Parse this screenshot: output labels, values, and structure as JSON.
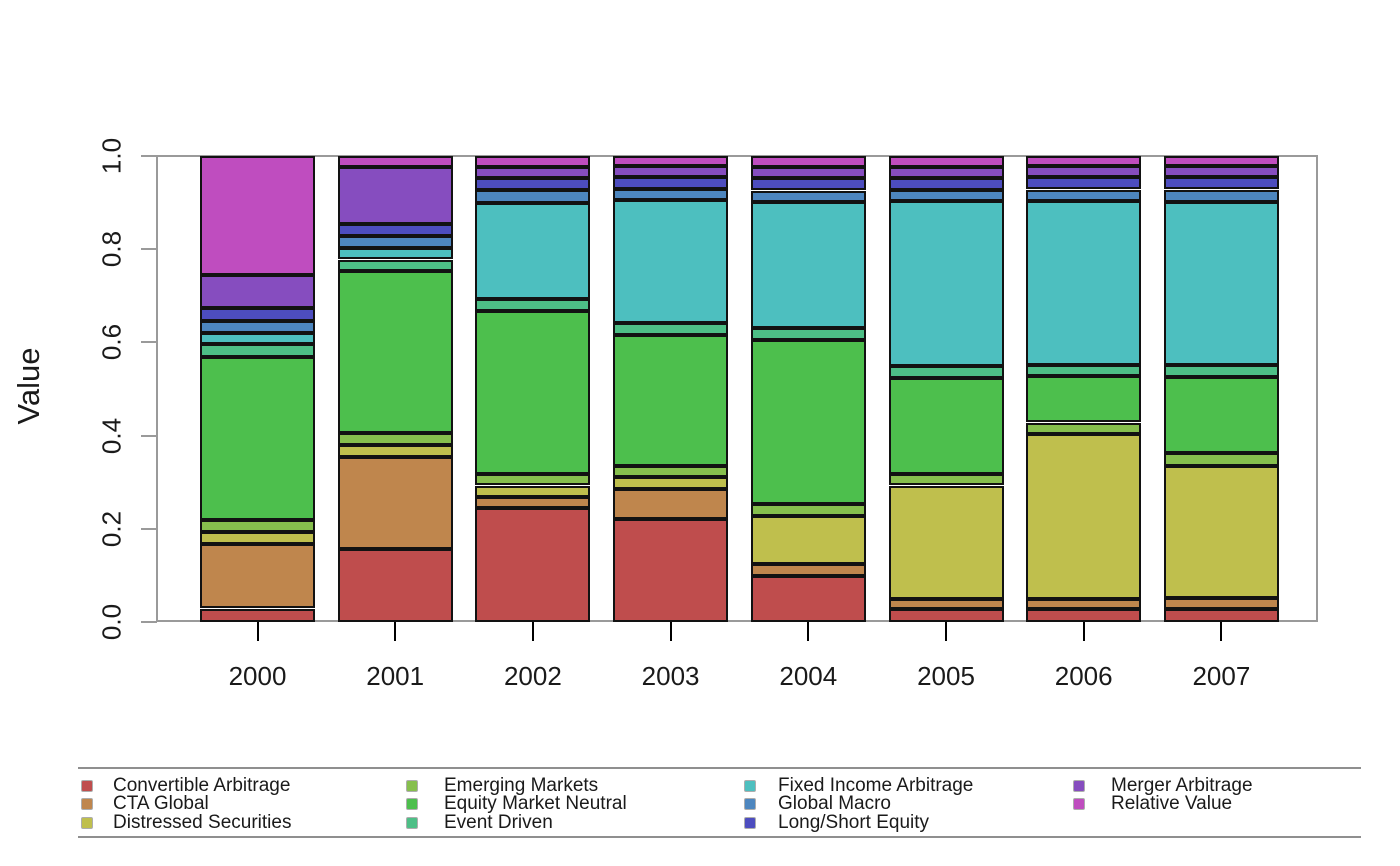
{
  "figure": {
    "background": "#ffffff",
    "frame_color": "#9a9a9a",
    "x_tick_color": "#000000",
    "y_tick_color": "#9a9a9a",
    "segment_border_color": "#121212",
    "text_color": "#1a1a1a"
  },
  "chart_data": {
    "type": "bar",
    "stacked": true,
    "normalized": true,
    "title": "",
    "xlabel": "",
    "ylabel": "Value",
    "ylim": [
      0.0,
      1.0
    ],
    "yticks": [
      "0.0",
      "0.2",
      "0.4",
      "0.6",
      "0.8",
      "1.0"
    ],
    "grid": false,
    "legend_position": "bottom",
    "categories": [
      "2000",
      "2001",
      "2002",
      "2003",
      "2004",
      "2005",
      "2006",
      "2007"
    ],
    "series": [
      {
        "name": "Convertible Arbitrage",
        "color": "#BF4D4D",
        "values": [
          0.029,
          0.156,
          0.244,
          0.221,
          0.099,
          0.027,
          0.028,
          0.028
        ]
      },
      {
        "name": "CTA Global",
        "color": "#BF864D",
        "values": [
          0.139,
          0.198,
          0.024,
          0.065,
          0.025,
          0.023,
          0.022,
          0.024
        ]
      },
      {
        "name": "Distressed Securities",
        "color": "#BFBF4D",
        "values": [
          0.026,
          0.025,
          0.025,
          0.025,
          0.104,
          0.243,
          0.353,
          0.283
        ]
      },
      {
        "name": "Emerging Markets",
        "color": "#86BF4D",
        "values": [
          0.025,
          0.027,
          0.025,
          0.024,
          0.025,
          0.025,
          0.025,
          0.027
        ]
      },
      {
        "name": "Equity Market Neutral",
        "color": "#4DBF4D",
        "values": [
          0.35,
          0.347,
          0.35,
          0.28,
          0.353,
          0.206,
          0.099,
          0.163
        ]
      },
      {
        "name": "Event Driven",
        "color": "#4DBF86",
        "values": [
          0.027,
          0.025,
          0.026,
          0.026,
          0.024,
          0.026,
          0.024,
          0.026
        ]
      },
      {
        "name": "Fixed Income Arbitrage",
        "color": "#4DBFBF",
        "values": [
          0.024,
          0.025,
          0.206,
          0.264,
          0.271,
          0.353,
          0.353,
          0.35
        ]
      },
      {
        "name": "Global Macro",
        "color": "#4D86BF",
        "values": [
          0.026,
          0.025,
          0.027,
          0.025,
          0.025,
          0.024,
          0.024,
          0.027
        ]
      },
      {
        "name": "Long/Short Equity",
        "color": "#4D4DBF",
        "values": [
          0.027,
          0.027,
          0.026,
          0.025,
          0.027,
          0.026,
          0.026,
          0.026
        ]
      },
      {
        "name": "Merger Arbitrage",
        "color": "#864DBF",
        "values": [
          0.071,
          0.122,
          0.024,
          0.023,
          0.024,
          0.024,
          0.024,
          0.024
        ]
      },
      {
        "name": "Relative Value",
        "color": "#BF4DBF",
        "values": [
          0.256,
          0.023,
          0.023,
          0.022,
          0.023,
          0.023,
          0.022,
          0.022
        ]
      }
    ],
    "legend_columns": [
      [
        0,
        1,
        2
      ],
      [
        3,
        4,
        5
      ],
      [
        6,
        7,
        8
      ],
      [
        9,
        10
      ]
    ]
  }
}
